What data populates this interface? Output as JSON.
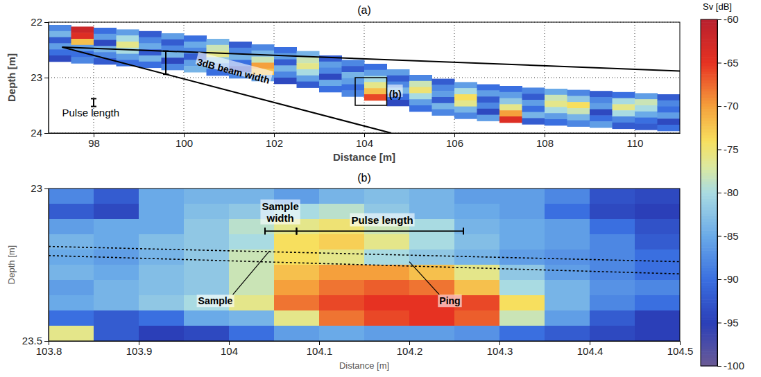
{
  "chart_data": [
    {
      "type": "heatmap",
      "title": "(a)",
      "xlabel": "Distance [m]",
      "ylabel": "Depth [m]",
      "xlim": [
        97,
        111
      ],
      "ylim": [
        22,
        24
      ],
      "xticks": [
        98,
        100,
        102,
        104,
        106,
        108,
        110
      ],
      "yticks": [
        22,
        23,
        24
      ],
      "grid": true,
      "cell_height": 0.11,
      "columns": [
        {
          "x": [
            97,
            97.5
          ],
          "top": 22.05,
          "sv": [
            -88,
            -84,
            -92,
            -86,
            -90,
            -94
          ]
        },
        {
          "x": [
            97.5,
            98
          ],
          "top": 22.08,
          "sv": [
            -62,
            -64,
            -72,
            -86,
            -90,
            -88
          ]
        },
        {
          "x": [
            98,
            98.5
          ],
          "top": 22.1,
          "sv": [
            -90,
            -86,
            -94,
            -84,
            -88,
            -92
          ]
        },
        {
          "x": [
            98.5,
            99
          ],
          "top": 22.13,
          "sv": [
            -86,
            -80,
            -76,
            -80,
            -86,
            -90
          ]
        },
        {
          "x": [
            99,
            99.5
          ],
          "top": 22.16,
          "sv": [
            -92,
            -88,
            -85,
            -92,
            -84,
            -90
          ]
        },
        {
          "x": [
            99.5,
            100
          ],
          "top": 22.2,
          "sv": [
            -86,
            -92,
            -88,
            -84,
            -94,
            -88
          ]
        },
        {
          "x": [
            100,
            100.5
          ],
          "top": 22.24,
          "sv": [
            -90,
            -85,
            -88,
            -92,
            -86,
            -84
          ]
        },
        {
          "x": [
            100.5,
            101
          ],
          "top": 22.3,
          "sv": [
            -84,
            -78,
            -76,
            -82,
            -86,
            -90
          ]
        },
        {
          "x": [
            101,
            101.5
          ],
          "top": 22.35,
          "sv": [
            -92,
            -88,
            -84,
            -90,
            -94,
            -88
          ]
        },
        {
          "x": [
            101.5,
            102
          ],
          "top": 22.4,
          "sv": [
            -88,
            -84,
            -78,
            -70,
            -72,
            -86
          ]
        },
        {
          "x": [
            102,
            102.5
          ],
          "top": 22.45,
          "sv": [
            -90,
            -86,
            -92,
            -84,
            -88,
            -94
          ]
        },
        {
          "x": [
            102.5,
            103
          ],
          "top": 22.52,
          "sv": [
            -84,
            -78,
            -76,
            -80,
            -86,
            -92
          ]
        },
        {
          "x": [
            103,
            103.5
          ],
          "top": 22.6,
          "sv": [
            -92,
            -86,
            -88,
            -94,
            -85,
            -90
          ]
        },
        {
          "x": [
            103.5,
            104
          ],
          "top": 22.68,
          "sv": [
            -88,
            -92,
            -84,
            -86,
            -90,
            -88
          ]
        },
        {
          "x": [
            104,
            104.5
          ],
          "top": 22.75,
          "sv": [
            -90,
            -86,
            -80,
            -76,
            -72,
            -66
          ]
        },
        {
          "x": [
            104.5,
            105
          ],
          "top": 22.85,
          "sv": [
            -86,
            -92,
            -88,
            -84,
            -90,
            -94
          ]
        },
        {
          "x": [
            105,
            105.5
          ],
          "top": 22.95,
          "sv": [
            -88,
            -78,
            -75,
            -80,
            -86,
            -90
          ]
        },
        {
          "x": [
            105.5,
            106
          ],
          "top": 23.02,
          "sv": [
            -92,
            -88,
            -86,
            -92,
            -84,
            -88
          ]
        },
        {
          "x": [
            106,
            106.5
          ],
          "top": 23.08,
          "sv": [
            -86,
            -80,
            -74,
            -76,
            -84,
            -88
          ]
        },
        {
          "x": [
            106.5,
            107
          ],
          "top": 23.12,
          "sv": [
            -90,
            -86,
            -92,
            -88,
            -94,
            -86
          ]
        },
        {
          "x": [
            107,
            107.5
          ],
          "top": 23.15,
          "sv": [
            -90,
            -86,
            -82,
            -76,
            -70,
            -64
          ]
        },
        {
          "x": [
            107.5,
            108
          ],
          "top": 23.18,
          "sv": [
            -88,
            -92,
            -86,
            -90,
            -84,
            -92
          ]
        },
        {
          "x": [
            108,
            108.5
          ],
          "top": 23.2,
          "sv": [
            -85,
            -78,
            -76,
            -80,
            -86,
            -90
          ]
        },
        {
          "x": [
            108.5,
            109
          ],
          "top": 23.22,
          "sv": [
            -88,
            -82,
            -74,
            -78,
            -84,
            -88
          ]
        },
        {
          "x": [
            109,
            109.5
          ],
          "top": 23.24,
          "sv": [
            -92,
            -88,
            -86,
            -94,
            -90,
            -86
          ]
        },
        {
          "x": [
            109.5,
            110
          ],
          "top": 23.26,
          "sv": [
            -90,
            -80,
            -76,
            -80,
            -88,
            -92
          ]
        },
        {
          "x": [
            110,
            110.5
          ],
          "top": 23.28,
          "sv": [
            -86,
            -78,
            -80,
            -85,
            -90,
            -92
          ]
        },
        {
          "x": [
            110.5,
            111
          ],
          "top": 23.3,
          "sv": [
            -92,
            -88,
            -90,
            -86,
            -94,
            -90
          ]
        }
      ],
      "beam_lines": [
        [
          [
            97.3,
            22.45
          ],
          [
            111,
            22.88
          ]
        ],
        [
          [
            97.3,
            22.45
          ],
          [
            104.6,
            24.0
          ]
        ]
      ],
      "beam_width": {
        "label": "3dB beam width",
        "x": 99.6,
        "y": [
          22.52,
          22.94
        ],
        "label_at": [
          101.1,
          22.88
        ]
      },
      "pulse_length": {
        "label": "Pulse length",
        "x": 98,
        "y": [
          23.38,
          23.52
        ],
        "label_at": [
          97.3,
          23.7
        ]
      },
      "zoom_box": {
        "label": "(b)",
        "x": [
          103.8,
          104.5
        ],
        "y": [
          23.0,
          23.5
        ],
        "label_at": [
          104.55,
          23.3
        ]
      },
      "colorbar": {
        "label": "Sv [dB]",
        "range": [
          -100,
          -60
        ],
        "ticks": [
          -60,
          -65,
          -70,
          -75,
          -80,
          -85,
          -90,
          -95,
          -100
        ]
      }
    },
    {
      "type": "heatmap",
      "title": "(b)",
      "xlabel": "Distance [m]",
      "ylabel": "Depth [m]",
      "xlim": [
        103.8,
        104.5
      ],
      "ylim": [
        23,
        23.5
      ],
      "xticks": [
        103.8,
        103.9,
        104,
        104.1,
        104.2,
        104.3,
        104.4,
        104.5
      ],
      "yticks": [
        23,
        23.5
      ],
      "grid": false,
      "cell_height": 0.05,
      "columns": [
        {
          "x": [
            103.8,
            103.85
          ],
          "top": 23,
          "sv": [
            -88,
            -92,
            -86,
            -84,
            -85,
            -84,
            -86,
            -85,
            -90,
            -76
          ]
        },
        {
          "x": [
            103.85,
            103.9
          ],
          "top": 23,
          "sv": [
            -92,
            -94,
            -85,
            -85,
            -86,
            -85,
            -84,
            -84,
            -92,
            -92
          ]
        },
        {
          "x": [
            103.9,
            103.95
          ],
          "top": 23,
          "sv": [
            -85,
            -85,
            -85,
            -83,
            -84,
            -83,
            -83,
            -82,
            -90,
            -95
          ]
        },
        {
          "x": [
            103.95,
            104
          ],
          "top": 23,
          "sv": [
            -84,
            -83,
            -82,
            -82,
            -82,
            -82,
            -82,
            -80,
            -85,
            -94
          ]
        },
        {
          "x": [
            104,
            104.05
          ],
          "top": 23,
          "sv": [
            -84,
            -82,
            -79,
            -80,
            -78,
            -78,
            -78,
            -76,
            -84,
            -90
          ]
        },
        {
          "x": [
            104.05,
            104.1
          ],
          "top": 23,
          "sv": [
            -86,
            -80,
            -76,
            -74,
            -74,
            -72,
            -70,
            -68,
            -76,
            -86
          ]
        },
        {
          "x": [
            104.1,
            104.15
          ],
          "top": 23,
          "sv": [
            -84,
            -79,
            -75,
            -73,
            -76,
            -70,
            -68,
            -66,
            -68,
            -85
          ]
        },
        {
          "x": [
            104.15,
            104.2
          ],
          "top": 23,
          "sv": [
            -83,
            -82,
            -78,
            -76,
            -80,
            -70,
            -67,
            -65,
            -66,
            -86
          ]
        },
        {
          "x": [
            104.2,
            104.25
          ],
          "top": 23,
          "sv": [
            -84,
            -84,
            -80,
            -80,
            -82,
            -72,
            -68,
            -65,
            -65,
            -86
          ]
        },
        {
          "x": [
            104.25,
            104.3
          ],
          "top": 23,
          "sv": [
            -86,
            -85,
            -84,
            -83,
            -84,
            -76,
            -72,
            -66,
            -67,
            -87
          ]
        },
        {
          "x": [
            104.3,
            104.35
          ],
          "top": 23,
          "sv": [
            -86,
            -86,
            -85,
            -85,
            -86,
            -82,
            -80,
            -74,
            -78,
            -90
          ]
        },
        {
          "x": [
            104.35,
            104.4
          ],
          "top": 23,
          "sv": [
            -88,
            -90,
            -86,
            -86,
            -87,
            -86,
            -84,
            -84,
            -86,
            -92
          ]
        },
        {
          "x": [
            104.4,
            104.45
          ],
          "top": 23,
          "sv": [
            -93,
            -94,
            -90,
            -88,
            -88,
            -88,
            -87,
            -88,
            -92,
            -94
          ]
        },
        {
          "x": [
            104.45,
            104.5
          ],
          "top": 23,
          "sv": [
            -94,
            -95,
            -93,
            -92,
            -90,
            -90,
            -88,
            -90,
            -95,
            -95
          ]
        }
      ],
      "sample_lines": [
        [
          [
            103.8,
            23.19
          ],
          [
            104.5,
            23.24
          ]
        ],
        [
          [
            103.8,
            23.22
          ],
          [
            104.5,
            23.28
          ]
        ]
      ],
      "sample_width": {
        "label": "Sample width",
        "x": [
          104.04,
          104.075
        ],
        "y": 23.14,
        "label_at": [
          104.057,
          23.07
        ]
      },
      "pulse_length": {
        "label": "Pulse length",
        "x": [
          104.075,
          104.26
        ],
        "y": 23.14,
        "label_at": [
          104.17,
          23.115
        ]
      },
      "sample_label": {
        "label": "Sample",
        "label_at": [
          103.985,
          23.38
        ],
        "target": [
          104.045,
          23.205
        ]
      },
      "ping_label": {
        "label": "Ping",
        "label_at": [
          104.245,
          23.38
        ],
        "target": [
          104.2,
          23.24
        ]
      }
    }
  ]
}
